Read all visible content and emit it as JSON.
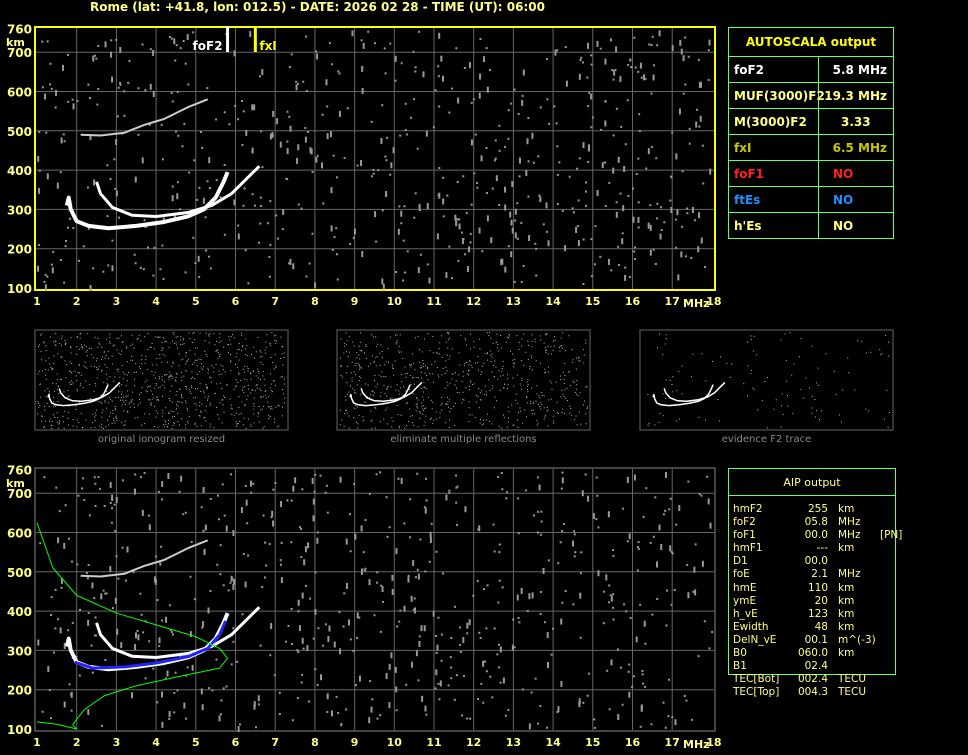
{
  "title": "Rome (lat: +41.8, lon: 012.5) - DATE: 2026 02 28 - TIME (UT): 06:00",
  "autoscala": {
    "header": "AUTOSCALA output",
    "rows": [
      {
        "label": "foF2",
        "value": "5.8 MHz",
        "color": "#ffffff"
      },
      {
        "label": "MUF(3000)F2",
        "value": "19.3 MHz",
        "color": "#ffff80"
      },
      {
        "label": "M(3000)F2",
        "value": "3.33",
        "color": "#ffff80"
      },
      {
        "label": "fxI",
        "value": "6.5 MHz",
        "color": "#c8c800"
      },
      {
        "label": "foF1",
        "value": "NO",
        "color": "#ff2020"
      },
      {
        "label": "ftEs",
        "value": "NO",
        "color": "#1e90ff"
      },
      {
        "label": "h'Es",
        "value": "NO",
        "color": "#ffff80"
      }
    ]
  },
  "aip": {
    "header": "AIP output",
    "rows": [
      [
        "hmF2",
        "255",
        "km",
        ""
      ],
      [
        "foF2",
        "05.8",
        "MHz",
        ""
      ],
      [
        "foF1",
        "00.0",
        "MHz",
        "[PN]"
      ],
      [
        "hmF1",
        "---",
        "km",
        ""
      ],
      [
        "D1",
        "00.0",
        "",
        ""
      ],
      [
        "foE",
        "2.1",
        "MHz",
        ""
      ],
      [
        "hmE",
        "110",
        "km",
        ""
      ],
      [
        "ymE",
        "20",
        "km",
        ""
      ],
      [
        "h_vE",
        "123",
        "km",
        ""
      ],
      [
        "Ewidth",
        "48",
        "km",
        ""
      ],
      [
        "DelN_vE",
        "00.1",
        "m^(-3)",
        ""
      ],
      [
        "B0",
        "060.0",
        "km",
        ""
      ],
      [
        "B1",
        "02.4",
        "",
        ""
      ],
      [
        "TEC[Bot]",
        "002.4",
        "TECU",
        ""
      ],
      [
        "TEC[Top]",
        "004.3",
        "TECU",
        ""
      ]
    ]
  },
  "thumbnails": [
    "original ionogram resized",
    "eliminate multiple reflections",
    "evidence F2 trace"
  ],
  "chart_data": {
    "type": "scatter",
    "xlabel": "MHz",
    "ylabel": "km",
    "xlim": [
      1,
      18
    ],
    "ylim": [
      100,
      760
    ],
    "xticks": [
      1,
      2,
      3,
      4,
      5,
      6,
      7,
      8,
      9,
      10,
      11,
      12,
      13,
      14,
      15,
      16,
      17,
      18
    ],
    "yticks": [
      100,
      200,
      300,
      400,
      500,
      600,
      700,
      760
    ],
    "markers": [
      {
        "label": "foF2",
        "freq": 5.8,
        "color": "#ffffff"
      },
      {
        "label": "fxI",
        "freq": 6.5,
        "color": "#ffff00"
      }
    ],
    "traces": {
      "o_trace": [
        [
          1.75,
          310
        ],
        [
          1.8,
          330
        ],
        [
          1.85,
          300
        ],
        [
          2.0,
          270
        ],
        [
          2.3,
          258
        ],
        [
          2.8,
          252
        ],
        [
          3.5,
          258
        ],
        [
          4.2,
          268
        ],
        [
          4.8,
          282
        ],
        [
          5.2,
          300
        ],
        [
          5.5,
          330
        ],
        [
          5.7,
          370
        ],
        [
          5.8,
          395
        ]
      ],
      "x_trace": [
        [
          2.5,
          370
        ],
        [
          2.6,
          340
        ],
        [
          2.9,
          305
        ],
        [
          3.4,
          285
        ],
        [
          4.0,
          282
        ],
        [
          4.8,
          292
        ],
        [
          5.4,
          310
        ],
        [
          5.9,
          340
        ],
        [
          6.3,
          380
        ],
        [
          6.6,
          410
        ]
      ],
      "multiple": [
        [
          2.1,
          490
        ],
        [
          2.6,
          488
        ],
        [
          3.2,
          495
        ],
        [
          3.7,
          515
        ],
        [
          4.2,
          530
        ],
        [
          4.8,
          560
        ],
        [
          5.3,
          580
        ]
      ]
    },
    "fit_trace": [
      [
        1.95,
        270
      ],
      [
        2.4,
        255
      ],
      [
        3.2,
        258
      ],
      [
        4.0,
        268
      ],
      [
        4.8,
        284
      ],
      [
        5.3,
        305
      ],
      [
        5.6,
        340
      ],
      [
        5.75,
        375
      ]
    ],
    "profile": [
      [
        1.0,
        625
      ],
      [
        1.4,
        510
      ],
      [
        2.0,
        440
      ],
      [
        3.0,
        395
      ],
      [
        4.0,
        365
      ],
      [
        5.0,
        335
      ],
      [
        5.6,
        305
      ],
      [
        5.8,
        280
      ],
      [
        5.6,
        255
      ],
      [
        4.5,
        232
      ],
      [
        3.5,
        210
      ],
      [
        2.7,
        185
      ],
      [
        2.2,
        150
      ],
      [
        2.0,
        125
      ],
      [
        1.9,
        110
      ],
      [
        2.0,
        100
      ],
      [
        1.5,
        112
      ],
      [
        1.0,
        118
      ]
    ]
  }
}
